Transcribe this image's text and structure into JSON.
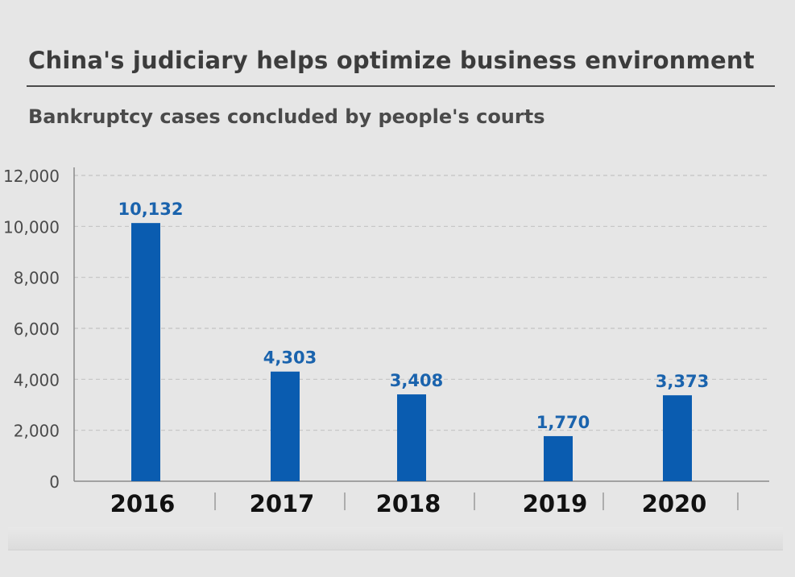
{
  "header": {
    "title": "China's judiciary helps optimize business environment",
    "subtitle": "Bankruptcy cases concluded by people's courts"
  },
  "colors": {
    "bar": "#0a5cb0",
    "value_label": "#1a63ad",
    "grid": "#c4c4c4",
    "axis": "#8a8a8a",
    "tick_text": "#4a4a4a",
    "category_text": "#111111"
  },
  "chart_data": {
    "type": "bar",
    "title": "Bankruptcy cases concluded by people's courts",
    "categories": [
      "2016",
      "2017",
      "2018",
      "2019",
      "2020"
    ],
    "values": [
      10132,
      4303,
      3408,
      1770,
      3373
    ],
    "value_labels": [
      "10,132",
      "4,303",
      "3,408",
      "1,770",
      "3,373"
    ],
    "ylim": [
      0,
      12000
    ],
    "yticks": [
      0,
      2000,
      4000,
      6000,
      8000,
      10000,
      12000
    ],
    "ytick_labels": [
      "0",
      "2,000",
      "4,000",
      "6,000",
      "8,000",
      "10,000",
      "12,000"
    ],
    "xlabel": "",
    "ylabel": "",
    "grid": true,
    "legend": "none"
  }
}
